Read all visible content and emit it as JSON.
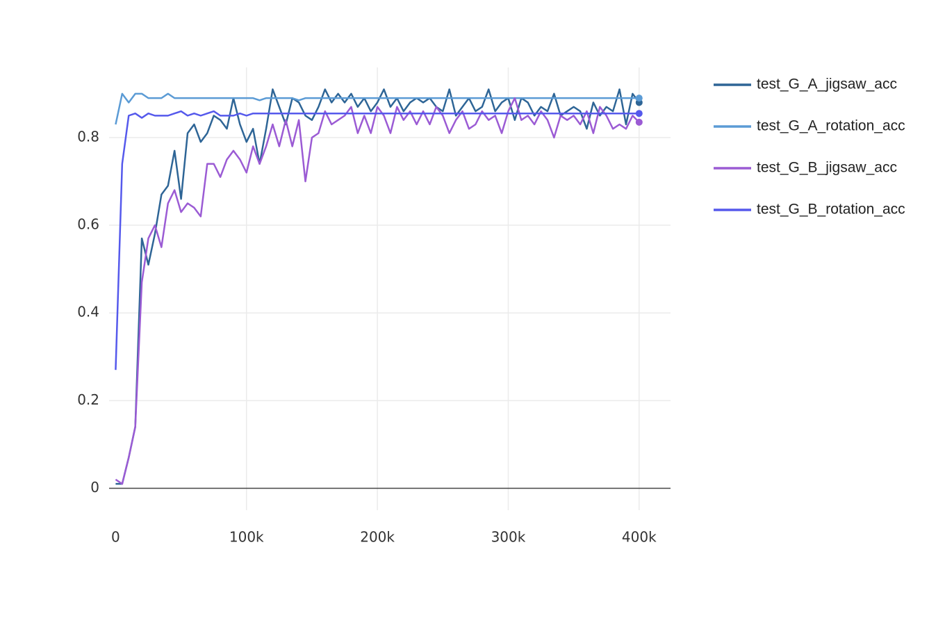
{
  "chart_data": {
    "type": "line",
    "x": [
      0,
      5000,
      10000,
      15000,
      20000,
      25000,
      30000,
      35000,
      40000,
      45000,
      50000,
      55000,
      60000,
      65000,
      70000,
      75000,
      80000,
      85000,
      90000,
      95000,
      100000,
      105000,
      110000,
      115000,
      120000,
      125000,
      130000,
      135000,
      140000,
      145000,
      150000,
      155000,
      160000,
      165000,
      170000,
      175000,
      180000,
      185000,
      190000,
      195000,
      200000,
      205000,
      210000,
      215000,
      220000,
      225000,
      230000,
      235000,
      240000,
      245000,
      250000,
      255000,
      260000,
      265000,
      270000,
      275000,
      280000,
      285000,
      290000,
      295000,
      300000,
      305000,
      310000,
      315000,
      320000,
      325000,
      330000,
      335000,
      340000,
      345000,
      350000,
      355000,
      360000,
      365000,
      370000,
      375000,
      380000,
      385000,
      390000,
      395000,
      400000
    ],
    "series": [
      {
        "name": "test_G_A_jigsaw_acc",
        "color": "#2e6596",
        "values": [
          0.01,
          0.01,
          0.07,
          0.14,
          0.57,
          0.51,
          0.58,
          0.67,
          0.69,
          0.77,
          0.66,
          0.81,
          0.83,
          0.79,
          0.81,
          0.85,
          0.84,
          0.82,
          0.89,
          0.83,
          0.79,
          0.82,
          0.74,
          0.82,
          0.91,
          0.87,
          0.83,
          0.89,
          0.88,
          0.85,
          0.84,
          0.87,
          0.91,
          0.88,
          0.9,
          0.88,
          0.9,
          0.87,
          0.89,
          0.86,
          0.88,
          0.91,
          0.87,
          0.89,
          0.86,
          0.88,
          0.89,
          0.88,
          0.89,
          0.87,
          0.86,
          0.91,
          0.85,
          0.87,
          0.89,
          0.86,
          0.87,
          0.91,
          0.86,
          0.88,
          0.89,
          0.84,
          0.89,
          0.88,
          0.85,
          0.87,
          0.86,
          0.9,
          0.85,
          0.86,
          0.87,
          0.86,
          0.82,
          0.88,
          0.85,
          0.87,
          0.86,
          0.91,
          0.83,
          0.9,
          0.88
        ]
      },
      {
        "name": "test_G_A_rotation_acc",
        "color": "#5b9bd5",
        "values": [
          0.83,
          0.9,
          0.88,
          0.9,
          0.9,
          0.89,
          0.89,
          0.89,
          0.9,
          0.89,
          0.89,
          0.89,
          0.89,
          0.89,
          0.89,
          0.89,
          0.89,
          0.89,
          0.89,
          0.89,
          0.89,
          0.89,
          0.885,
          0.89,
          0.89,
          0.89,
          0.89,
          0.89,
          0.885,
          0.89,
          0.89,
          0.89,
          0.89,
          0.89,
          0.89,
          0.89,
          0.89,
          0.89,
          0.89,
          0.89,
          0.89,
          0.89,
          0.89,
          0.89,
          0.89,
          0.89,
          0.89,
          0.89,
          0.89,
          0.89,
          0.89,
          0.89,
          0.89,
          0.89,
          0.89,
          0.89,
          0.89,
          0.89,
          0.89,
          0.89,
          0.89,
          0.89,
          0.89,
          0.89,
          0.89,
          0.89,
          0.89,
          0.89,
          0.89,
          0.89,
          0.89,
          0.89,
          0.89,
          0.89,
          0.89,
          0.89,
          0.89,
          0.89,
          0.89,
          0.89,
          0.89
        ]
      },
      {
        "name": "test_G_B_jigsaw_acc",
        "color": "#9b5bd4",
        "values": [
          0.02,
          0.01,
          0.07,
          0.14,
          0.47,
          0.57,
          0.6,
          0.55,
          0.65,
          0.68,
          0.63,
          0.65,
          0.64,
          0.62,
          0.74,
          0.74,
          0.71,
          0.75,
          0.77,
          0.75,
          0.72,
          0.78,
          0.74,
          0.78,
          0.83,
          0.78,
          0.84,
          0.78,
          0.84,
          0.7,
          0.8,
          0.81,
          0.86,
          0.83,
          0.84,
          0.85,
          0.87,
          0.81,
          0.85,
          0.81,
          0.87,
          0.85,
          0.81,
          0.87,
          0.84,
          0.86,
          0.83,
          0.86,
          0.83,
          0.87,
          0.85,
          0.81,
          0.84,
          0.86,
          0.82,
          0.83,
          0.86,
          0.84,
          0.85,
          0.81,
          0.86,
          0.89,
          0.84,
          0.85,
          0.83,
          0.86,
          0.84,
          0.8,
          0.85,
          0.84,
          0.85,
          0.83,
          0.86,
          0.81,
          0.87,
          0.85,
          0.82,
          0.83,
          0.82,
          0.85,
          0.835
        ]
      },
      {
        "name": "test_G_B_rotation_acc",
        "color": "#5559ec",
        "values": [
          0.27,
          0.74,
          0.85,
          0.855,
          0.845,
          0.855,
          0.85,
          0.85,
          0.85,
          0.855,
          0.86,
          0.85,
          0.855,
          0.85,
          0.855,
          0.86,
          0.85,
          0.85,
          0.85,
          0.855,
          0.85,
          0.855,
          0.855,
          0.855,
          0.855,
          0.855,
          0.855,
          0.855,
          0.855,
          0.855,
          0.855,
          0.855,
          0.855,
          0.855,
          0.855,
          0.855,
          0.855,
          0.855,
          0.855,
          0.855,
          0.855,
          0.855,
          0.855,
          0.855,
          0.855,
          0.855,
          0.855,
          0.855,
          0.855,
          0.855,
          0.855,
          0.855,
          0.855,
          0.855,
          0.855,
          0.855,
          0.855,
          0.855,
          0.855,
          0.855,
          0.855,
          0.855,
          0.855,
          0.855,
          0.855,
          0.855,
          0.855,
          0.855,
          0.855,
          0.855,
          0.855,
          0.855,
          0.855,
          0.855,
          0.855,
          0.855,
          0.855,
          0.855,
          0.855,
          0.855,
          0.855
        ]
      }
    ],
    "xlim": [
      -5000,
      424000
    ],
    "ylim": [
      -0.05,
      0.96
    ],
    "xticks": [
      0,
      {
        "value": 100000,
        "label": "100k"
      },
      {
        "value": 200000,
        "label": "200k"
      },
      {
        "value": 300000,
        "label": "300k"
      },
      {
        "value": 400000,
        "label": "400k"
      }
    ],
    "yticks": [
      0,
      0.2,
      0.4,
      0.6,
      0.8
    ],
    "grid": true,
    "legend": "right"
  }
}
